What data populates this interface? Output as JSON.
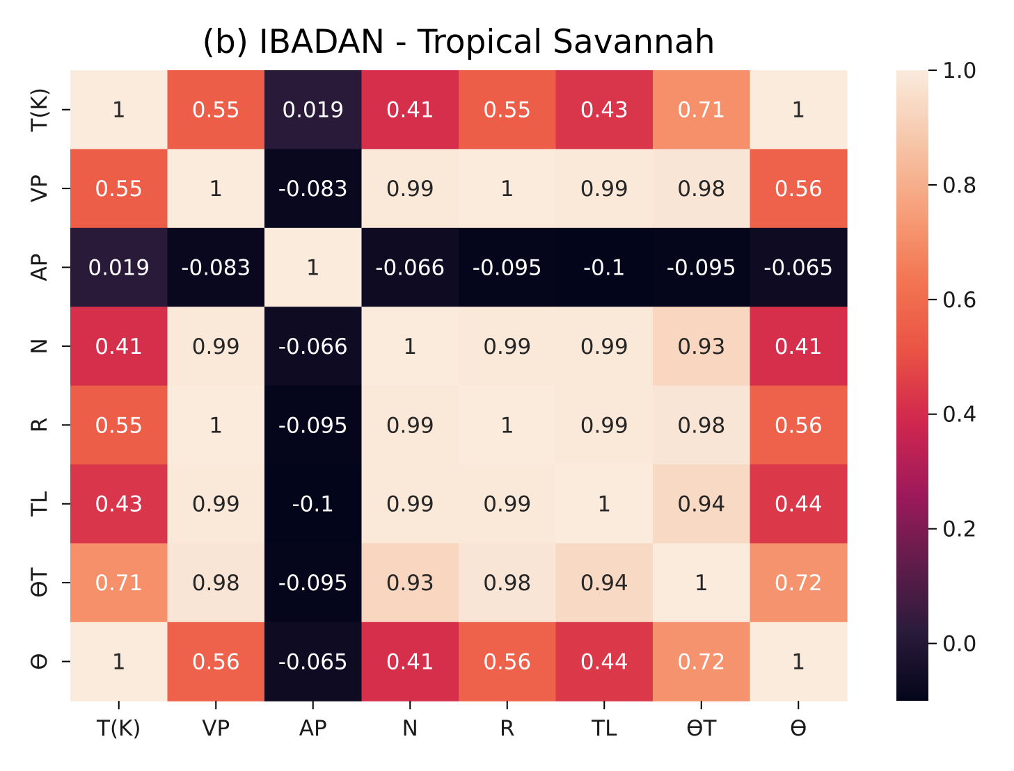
{
  "chart_data": {
    "type": "heatmap",
    "title": "(b) IBADAN - Tropical Savannah",
    "xlabel": "",
    "ylabel": "",
    "x_labels": [
      "T(K)",
      "VP",
      "AP",
      "N",
      "R",
      "TL",
      "ϴT",
      "ϴ"
    ],
    "y_labels": [
      "T(K)",
      "VP",
      "AP",
      "N",
      "R",
      "TL",
      "ϴT",
      "ϴ"
    ],
    "values": [
      [
        1,
        0.55,
        0.019,
        0.41,
        0.55,
        0.43,
        0.71,
        1
      ],
      [
        0.55,
        1,
        -0.083,
        0.99,
        1,
        0.99,
        0.98,
        0.56
      ],
      [
        0.019,
        -0.083,
        1,
        -0.066,
        -0.095,
        -0.1,
        -0.095,
        -0.065
      ],
      [
        0.41,
        0.99,
        -0.066,
        1,
        0.99,
        0.99,
        0.93,
        0.41
      ],
      [
        0.55,
        1,
        -0.095,
        0.99,
        1,
        0.99,
        0.98,
        0.56
      ],
      [
        0.43,
        0.99,
        -0.1,
        0.99,
        0.99,
        1,
        0.94,
        0.44
      ],
      [
        0.71,
        0.98,
        -0.095,
        0.93,
        0.98,
        0.94,
        1,
        0.72
      ],
      [
        1,
        0.56,
        -0.065,
        0.41,
        0.56,
        0.44,
        0.72,
        1
      ]
    ],
    "annotations": [
      [
        "1",
        "0.55",
        "0.019",
        "0.41",
        "0.55",
        "0.43",
        "0.71",
        "1"
      ],
      [
        "0.55",
        "1",
        "-0.083",
        "0.99",
        "1",
        "0.99",
        "0.98",
        "0.56"
      ],
      [
        "0.019",
        "-0.083",
        "1",
        "-0.066",
        "-0.095",
        "-0.1",
        "-0.095",
        "-0.065"
      ],
      [
        "0.41",
        "0.99",
        "-0.066",
        "1",
        "0.99",
        "0.99",
        "0.93",
        "0.41"
      ],
      [
        "0.55",
        "1",
        "-0.095",
        "0.99",
        "1",
        "0.99",
        "0.98",
        "0.56"
      ],
      [
        "0.43",
        "0.99",
        "-0.1",
        "0.99",
        "0.99",
        "1",
        "0.94",
        "0.44"
      ],
      [
        "0.71",
        "0.98",
        "-0.095",
        "0.93",
        "0.98",
        "0.94",
        "1",
        "0.72"
      ],
      [
        "1",
        "0.56",
        "-0.065",
        "0.41",
        "0.56",
        "0.44",
        "0.72",
        "1"
      ]
    ],
    "colorbar": {
      "vmin": -0.1,
      "vmax": 1.0,
      "ticks": [
        0.0,
        0.2,
        0.4,
        0.6,
        0.8,
        1.0
      ],
      "tick_labels": [
        "0.0",
        "0.2",
        "0.4",
        "0.6",
        "0.8",
        "1.0"
      ],
      "colormap": "rocket",
      "colormap_stops": [
        "#03051a",
        "#2b1b3b",
        "#631c4c",
        "#a11a5b",
        "#d1274e",
        "#ea5344",
        "#f37552",
        "#f6a07a",
        "#f6c7aa",
        "#faebdd"
      ]
    },
    "grid": false,
    "legend": "none"
  }
}
